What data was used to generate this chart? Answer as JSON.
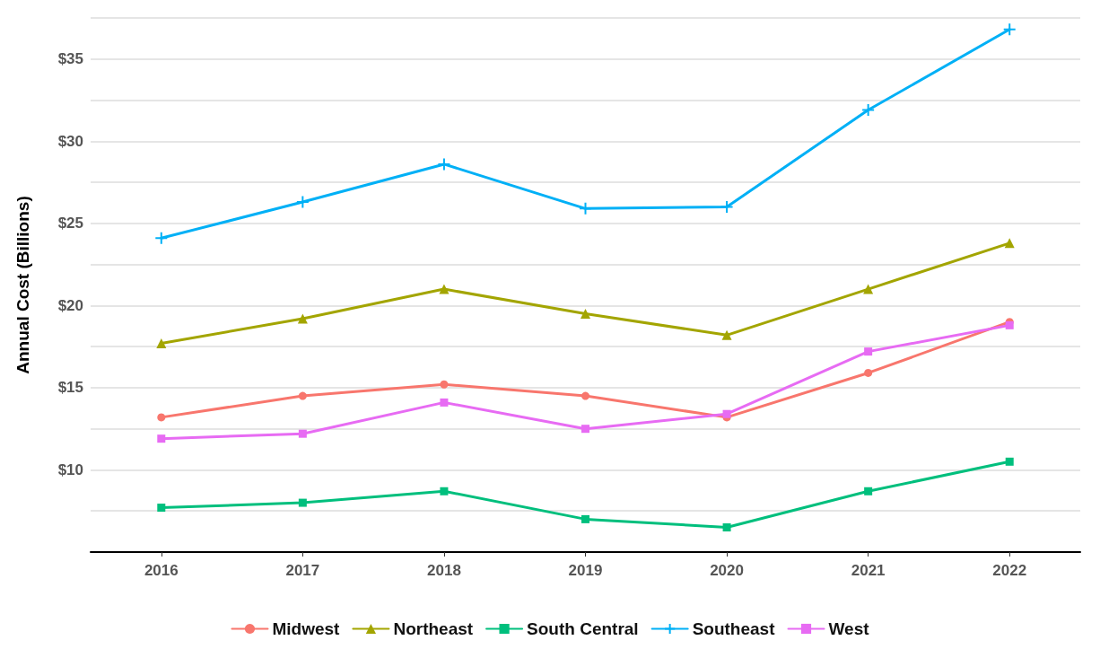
{
  "chart_data": {
    "type": "line",
    "ylabel": "Annual Cost (Billions)",
    "categories": [
      "2016",
      "2017",
      "2018",
      "2019",
      "2020",
      "2021",
      "2022"
    ],
    "ylim": [
      5,
      37.5
    ],
    "yticks": [
      {
        "value": 7.5,
        "label": null
      },
      {
        "value": 10,
        "label": "$10"
      },
      {
        "value": 12.5,
        "label": null
      },
      {
        "value": 15,
        "label": "$15"
      },
      {
        "value": 17.5,
        "label": null
      },
      {
        "value": 20,
        "label": "$20"
      },
      {
        "value": 22.5,
        "label": null
      },
      {
        "value": 25,
        "label": "$25"
      },
      {
        "value": 27.5,
        "label": null
      },
      {
        "value": 30,
        "label": "$30"
      },
      {
        "value": 32.5,
        "label": null
      },
      {
        "value": 35,
        "label": "$35"
      },
      {
        "value": 37.5,
        "label": null
      }
    ],
    "grid": "y",
    "legend": "bottom",
    "line_style": "solid",
    "series": [
      {
        "name": "Midwest",
        "color": "#f8766d",
        "marker": "circle",
        "values": [
          13.2,
          14.5,
          15.2,
          14.5,
          13.2,
          15.9,
          19.0
        ]
      },
      {
        "name": "Northeast",
        "color": "#a3a500",
        "marker": "triangle",
        "values": [
          17.7,
          19.2,
          21.0,
          19.5,
          18.2,
          21.0,
          23.8
        ]
      },
      {
        "name": "South Central",
        "color": "#00bf7d",
        "marker": "square",
        "values": [
          7.7,
          8.0,
          8.7,
          7.0,
          6.5,
          8.7,
          10.5
        ]
      },
      {
        "name": "Southeast",
        "color": "#00b0f6",
        "marker": "cross",
        "values": [
          24.1,
          26.3,
          28.6,
          25.9,
          26.0,
          31.9,
          36.8
        ]
      },
      {
        "name": "West",
        "color": "#e76bf3",
        "marker": "square",
        "values": [
          11.9,
          12.2,
          14.1,
          12.5,
          13.4,
          17.2,
          18.8
        ]
      }
    ]
  }
}
